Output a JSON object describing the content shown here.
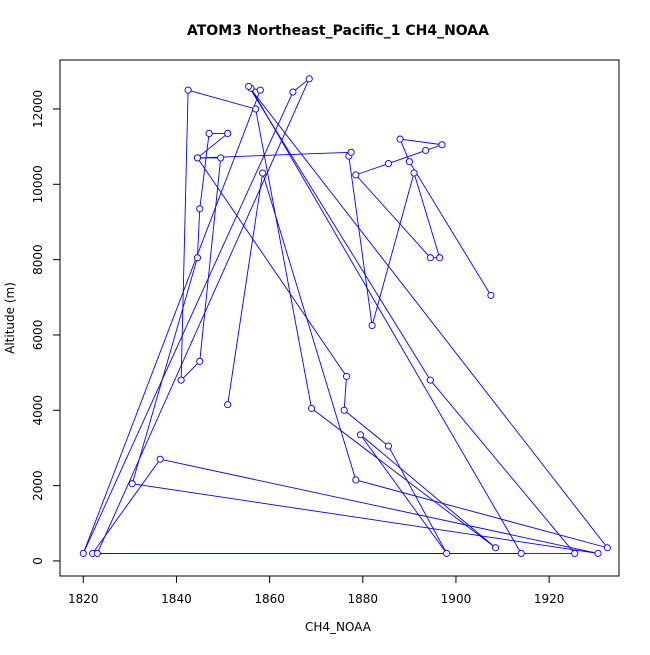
{
  "chart_data": {
    "type": "line",
    "title": "ATOM3 Northeast_Pacific_1 CH4_NOAA",
    "xlabel": "CH4_NOAA",
    "ylabel": "Altitude (m)",
    "xlim": [
      1815,
      1935
    ],
    "ylim": [
      -400,
      13300
    ],
    "xticks": [
      1820,
      1840,
      1860,
      1880,
      1900,
      1920
    ],
    "yticks": [
      0,
      2000,
      4000,
      6000,
      8000,
      10000,
      12000
    ],
    "grid": false,
    "legend": "none",
    "line_color": "#0000ff",
    "marker": "open-circle",
    "series": [
      {
        "x": [
          1907.5,
          1890,
          1888,
          1897,
          1893.5,
          1885.5,
          1878.5,
          1894.5,
          1896.5,
          1891,
          1882,
          1877,
          1877.5,
          1844.5,
          1876.5,
          1876,
          1885.5,
          1898,
          1879.5,
          1908.5,
          1869,
          1857,
          1842.5,
          1841,
          1845,
          1849.5,
          1844.5,
          1851,
          1847,
          1845,
          1844.5,
          1830.5,
          1930.5,
          1836.5,
          1822,
          1914,
          1856,
          1858,
          1820,
          1865,
          1868.5,
          1823,
          1925.5,
          1894.5,
          1855.5,
          1932.5,
          1878.5,
          1858.5,
          1851
        ],
        "y": [
          7050,
          10600,
          11200,
          11050,
          10900,
          10550,
          10250,
          8050,
          8050,
          10300,
          6250,
          10750,
          10850,
          10700,
          4900,
          4000,
          3050,
          200,
          3350,
          350,
          4050,
          12000,
          12500,
          4800,
          5300,
          10700,
          10700,
          11350,
          11350,
          9350,
          8050,
          2050,
          200,
          2700,
          200,
          200,
          12550,
          12500,
          200,
          12450,
          12800,
          200,
          200,
          4800,
          12600,
          350,
          2150,
          10300,
          4150
        ]
      }
    ]
  }
}
